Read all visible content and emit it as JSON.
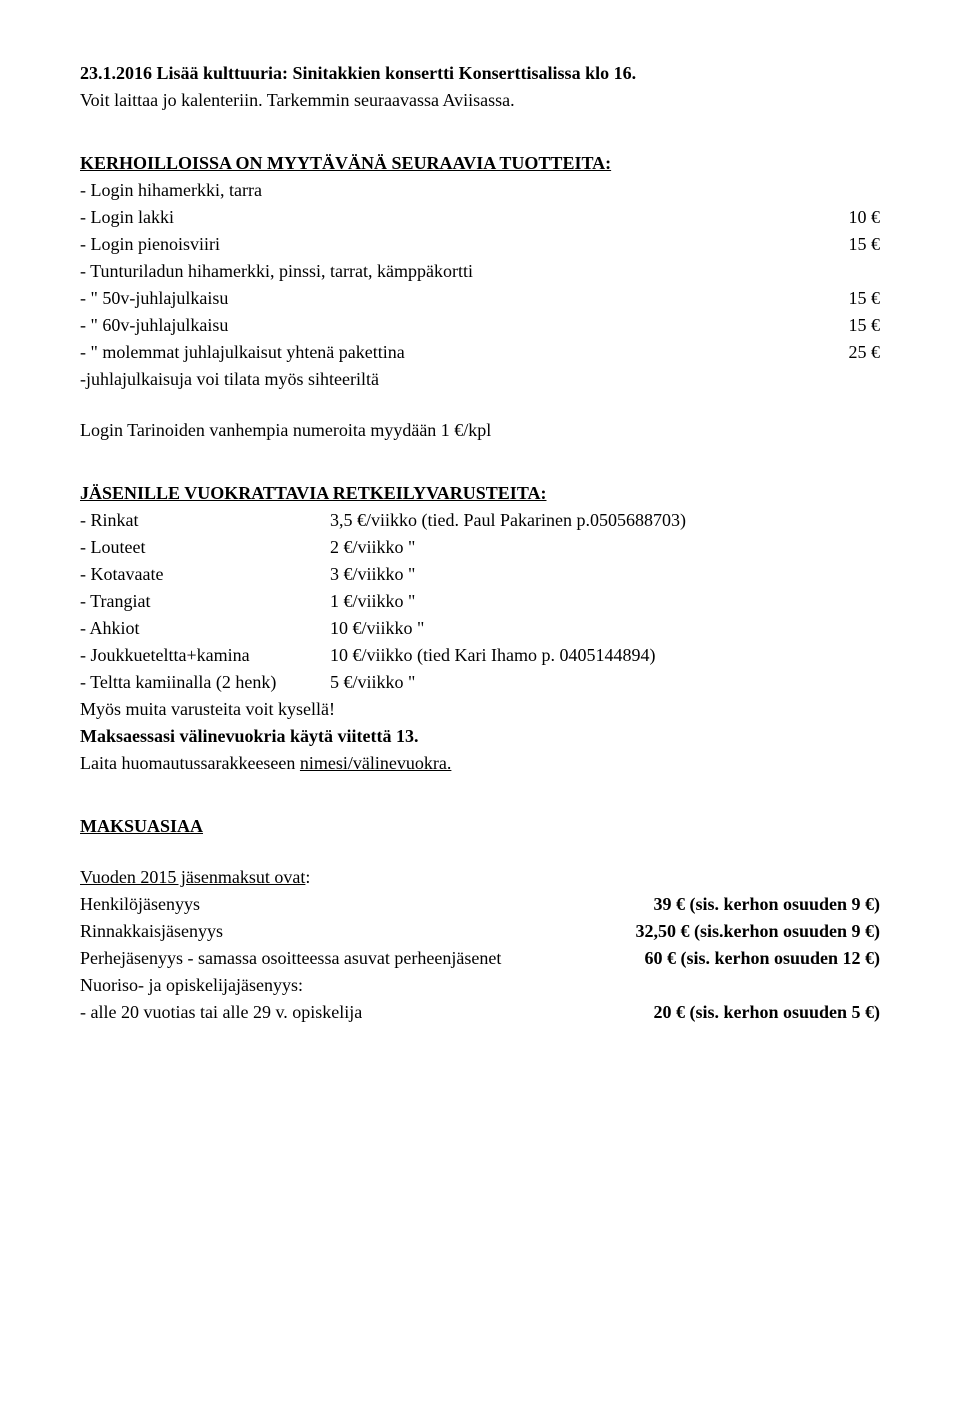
{
  "intro": {
    "line1_bold": "23.1.2016 Lisää kulttuuria: Sinitakkien konsertti Konserttisalissa klo 16.",
    "line2": "Voit laittaa jo kalenteriin. Tarkemmin seuraavassa Aviisassa."
  },
  "products": {
    "heading": "KERHOILLOISSA ON MYYTÄVÄNÄ SEURAAVIA TUOTTEITA:",
    "items": [
      {
        "label": "- Login hihamerkki, tarra",
        "price": ""
      },
      {
        "label": "- Login lakki",
        "price": "10 €"
      },
      {
        "label": "- Login pienoisviiri",
        "price": "15 €"
      },
      {
        "label": "- Tunturiladun hihamerkki, pinssi, tarrat, kämppäkortti",
        "price": ""
      },
      {
        "label": "- \"        50v-juhlajulkaisu",
        "price": "15 €"
      },
      {
        "label": "- \"        60v-juhlajulkaisu",
        "price": "15 €"
      },
      {
        "label": "- \"        molemmat juhlajulkaisut yhtenä pakettina",
        "price": "25 €"
      }
    ],
    "note": "-juhlajulkaisuja voi tilata myös sihteeriltä",
    "tarinat": "Login Tarinoiden vanhempia numeroita myydään 1 €/kpl"
  },
  "gear": {
    "heading": "JÄSENILLE VUOKRATTAVIA RETKEILYVARUSTEITA:",
    "rows": [
      {
        "left": "- Rinkat",
        "right": "3,5 €/viikko  (tied. Paul Pakarinen p.0505688703)"
      },
      {
        "left": "- Louteet",
        "right": "2   €/viikko            \""
      },
      {
        "left": "- Kotavaate",
        "right": "3   €/viikko            \""
      },
      {
        "left": "- Trangiat",
        "right": "1   €/viikko            \""
      },
      {
        "left": "- Ahkiot",
        "right": "10 €/viikko            \""
      },
      {
        "left": "- Joukkueteltta+kamina",
        "right": "10  €/viikko  (tied Kari Ihamo p. 0405144894)"
      },
      {
        "left": "- Teltta kamiinalla (2 henk)",
        "right": " 5   €/viikko            \""
      }
    ],
    "ask": "Myös muita varusteita voit kysellä!",
    "pay_bold": "Maksaessasi välinevuokria käytä viitettä 13.",
    "note_pre": "Laita huomautussarakkeeseen ",
    "note_underline": "nimesi/välinevuokra."
  },
  "fees": {
    "heading": "MAKSUASIAA",
    "year_line": "Vuoden 2015 jäsenmaksut ovat",
    "rows": [
      {
        "label": "Henkilöjäsenyys",
        "price": "39 €  (sis. kerhon osuuden 9 €)"
      },
      {
        "label": "Rinnakkaisjäsenyys",
        "price": "32,50 €  (sis.kerhon osuuden 9 €)"
      },
      {
        "label": "Perhejäsenyys - samassa osoitteessa asuvat perheenjäsenet",
        "price": "60 €  (sis. kerhon osuuden 12 €)"
      }
    ],
    "youth_label": "Nuoriso- ja opiskelijajäsenyys:",
    "youth_sub": {
      "label": "- alle 20 vuotias tai alle 29 v. opiskelija",
      "price": "20 €  (sis. kerhon osuuden 5 €)"
    }
  }
}
